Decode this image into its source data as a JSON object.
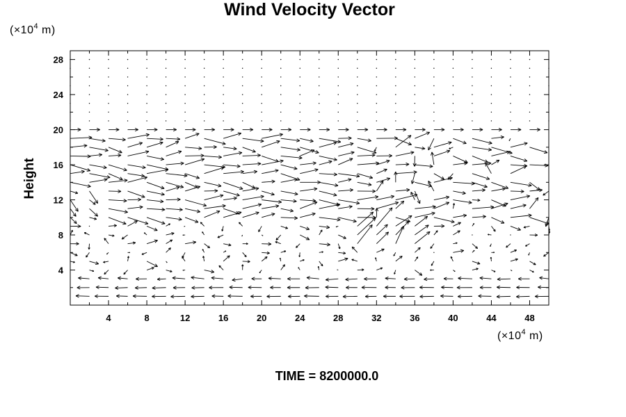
{
  "chart_data": {
    "type": "vector-field",
    "title": "Wind Velocity Vector",
    "ylabel": "Height",
    "y_unit": {
      "base": "(×10",
      "exp": "4",
      "tail": " m)"
    },
    "x_unit": {
      "base": "(×10",
      "exp": "4",
      "tail": " m)"
    },
    "xlim": [
      0,
      50
    ],
    "ylim": [
      0,
      29
    ],
    "xticks": [
      4,
      8,
      12,
      16,
      20,
      24,
      28,
      32,
      36,
      40,
      44,
      48
    ],
    "yticks": [
      4,
      8,
      12,
      16,
      20,
      24,
      28
    ],
    "grid": false,
    "time_label": "TIME = 8200000.0",
    "vector_grid": {
      "x_spacing": 2,
      "y_spacing": 1,
      "reference_speed_per_cell": 1
    },
    "upper_layer": "near-calm above 20 (dots)",
    "jet_layer": "strong eastward flow between 10 and 20, turbulent",
    "mid_layer": "weak mixed flow between 4 and 10",
    "surface_layer": "westward return flow below 4"
  },
  "colors": {
    "axes": "#000000",
    "vectors": "#000000",
    "background": "#ffffff"
  }
}
